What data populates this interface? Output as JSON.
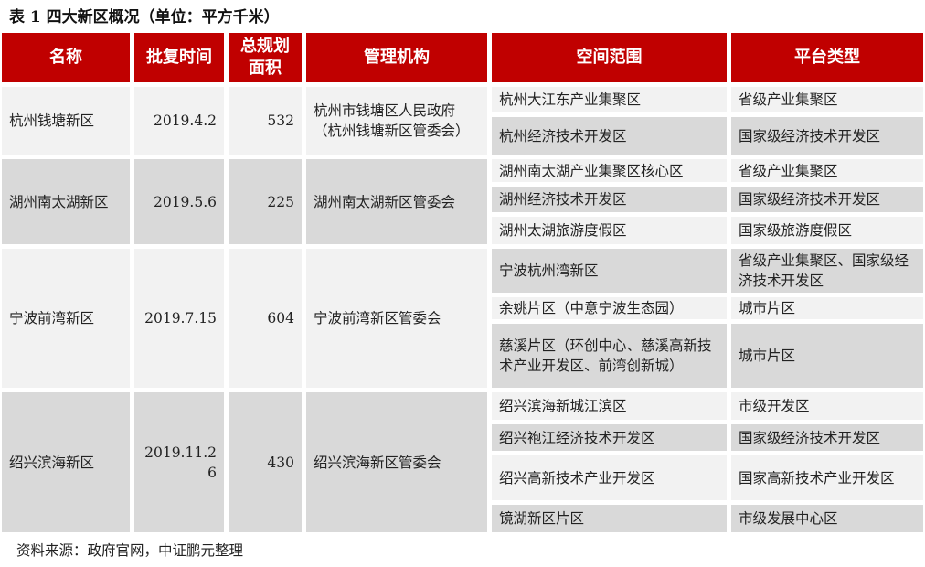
{
  "title": "表 1 四大新区概况（单位：平方千米）",
  "headers": [
    "名称",
    "批复时间",
    "总规划面积",
    "管理机构",
    "空间范围",
    "平台类型"
  ],
  "groups": [
    {
      "name": "杭州钱塘新区",
      "date": "2019.4.2",
      "area": "532",
      "org": "杭州市钱塘区人民政府（杭州钱塘新区管委会）",
      "rows": [
        {
          "scope": "杭州大江东产业集聚区",
          "type": "省级产业集聚区"
        },
        {
          "scope": "杭州经济技术开发区",
          "type": "国家级经济技术开发区"
        }
      ]
    },
    {
      "name": "湖州南太湖新区",
      "date": "2019.5.6",
      "area": "225",
      "org": "湖州南太湖新区管委会",
      "rows": [
        {
          "scope": "湖州南太湖产业集聚区核心区",
          "type": "省级产业集聚区"
        },
        {
          "scope": "湖州经济技术开发区",
          "type": "国家级经济技术开发区"
        },
        {
          "scope": "湖州太湖旅游度假区",
          "type": "国家级旅游度假区"
        }
      ]
    },
    {
      "name": "宁波前湾新区",
      "date": "2019.7.15",
      "area": "604",
      "org": "宁波前湾新区管委会",
      "rows": [
        {
          "scope": "宁波杭州湾新区",
          "type": "省级产业集聚区、国家级经济技术开发区"
        },
        {
          "scope": "余姚片区（中意宁波生态园）",
          "type": "城市片区"
        },
        {
          "scope": "慈溪片区（环创中心、慈溪高新技术产业开发区、前湾创新城）",
          "type": "城市片区"
        }
      ]
    },
    {
      "name": "绍兴滨海新区",
      "date": "2019.11.26",
      "area": "430",
      "org": "绍兴滨海新区管委会",
      "rows": [
        {
          "scope": "绍兴滨海新城江滨区",
          "type": "市级开发区"
        },
        {
          "scope": "绍兴袍江经济技术开发区",
          "type": "国家级经济技术开发区"
        },
        {
          "scope": "绍兴高新技术产业开发区",
          "type": "国家高新技术产业开发区"
        },
        {
          "scope": "镜湖新区片区",
          "type": "市级发展中心区"
        }
      ]
    }
  ],
  "colors": {
    "header": "#c00000",
    "row_light": "#f2f2f2",
    "row_dark": "#d9d9d9"
  },
  "source": "资料来源：政府官网，中证鹏元整理"
}
